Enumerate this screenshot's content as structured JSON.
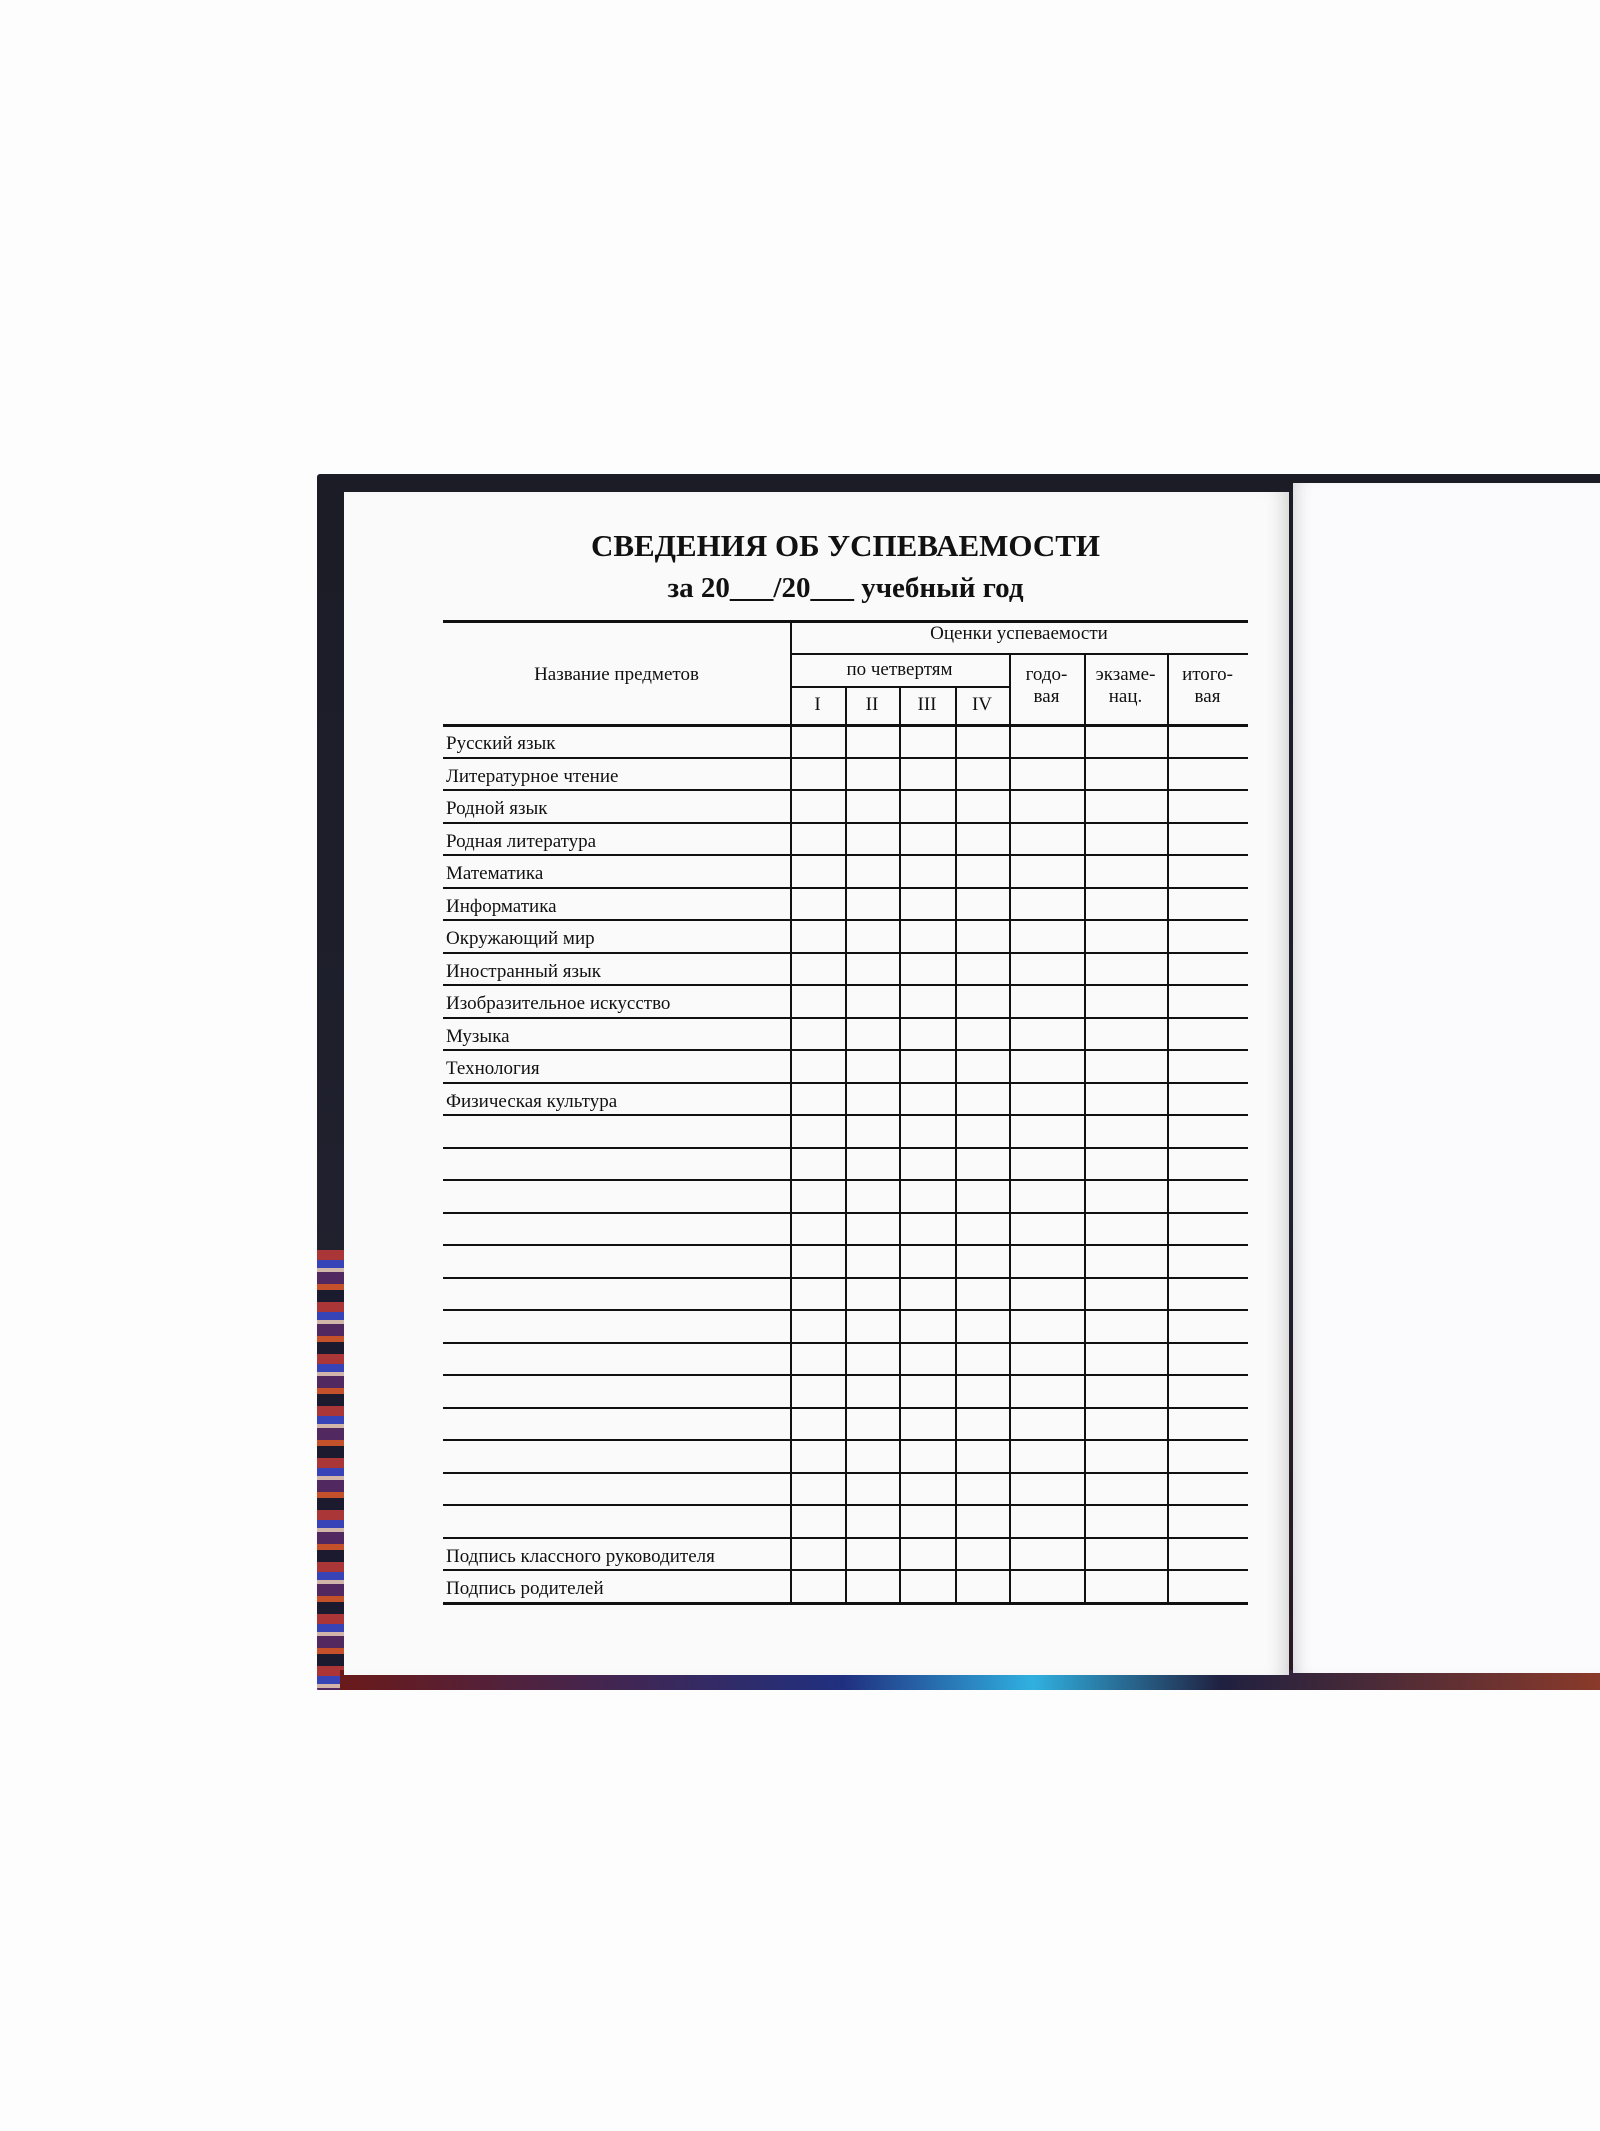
{
  "document": {
    "title": "СВЕДЕНИЯ ОБ УСПЕВАЕМОСТИ",
    "subtitle": "за 20___/20___ учебный год",
    "table": {
      "headers": {
        "subject_column": "Название предметов",
        "grades_group": "Оценки успеваемости",
        "quarters_group": "по четвертям",
        "quarters": [
          "I",
          "II",
          "III",
          "IV"
        ],
        "annual": "годо-\nвая",
        "exam": "экзаме-\nнац.",
        "final": "итого-\nвая"
      },
      "subjects": [
        "Русский язык",
        "Литературное чтение",
        "Родной язык",
        "Родная литература",
        "Математика",
        "Информатика",
        "Окружающий мир",
        "Иностранный язык",
        "Изобразительное искусство",
        "Музыка",
        "Технология",
        "Физическая культура"
      ],
      "blank_rows": 13,
      "signature_rows": [
        "Подпись классного руководителя",
        "Подпись родителей"
      ]
    }
  }
}
